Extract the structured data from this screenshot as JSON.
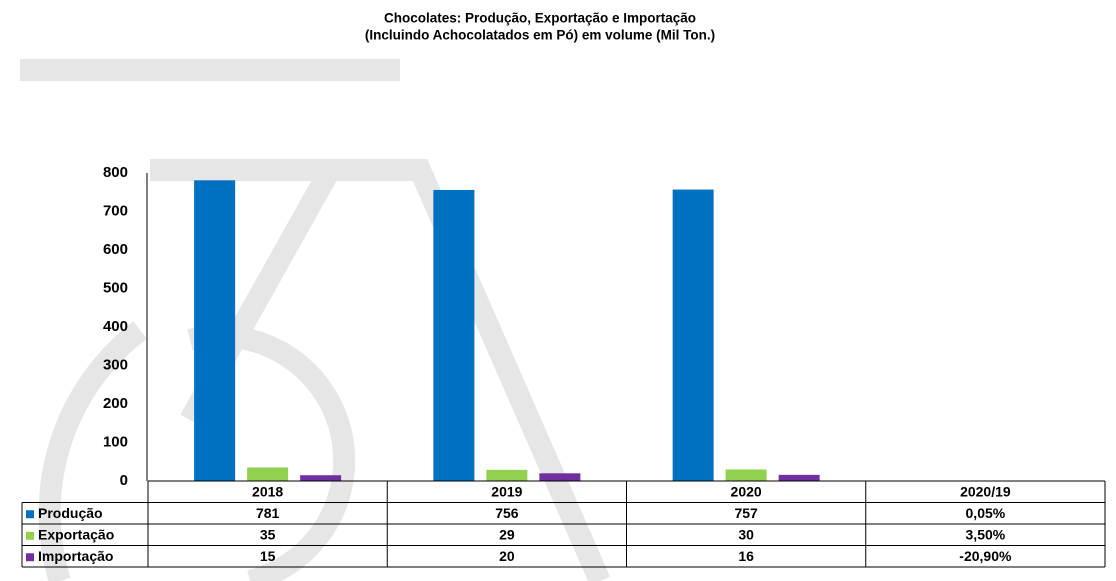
{
  "chart_data": {
    "type": "bar",
    "title": "Chocolates: Produção, Exportação e Importação",
    "subtitle": "(Incluindo Achocolatados  em Pó) em volume (Mil Ton.)",
    "categories": [
      "2018",
      "2019",
      "2020"
    ],
    "change_header": "2020/19",
    "series": [
      {
        "name": "Produção",
        "color": "#0070c0",
        "values": [
          781,
          756,
          757
        ],
        "change": 0.05,
        "change_label": "0,05%"
      },
      {
        "name": "Exportação",
        "color": "#92d050",
        "values": [
          35,
          29,
          30
        ],
        "change": 3.5,
        "change_label": "3,50%"
      },
      {
        "name": "Importação",
        "color": "#7030a0",
        "values": [
          15,
          20,
          16
        ],
        "change": -20.9,
        "change_label": "-20,90%"
      }
    ],
    "ylim": [
      0,
      800
    ],
    "yticks": [
      0,
      100,
      200,
      300,
      400,
      500,
      600,
      700,
      800
    ],
    "grid": false
  }
}
